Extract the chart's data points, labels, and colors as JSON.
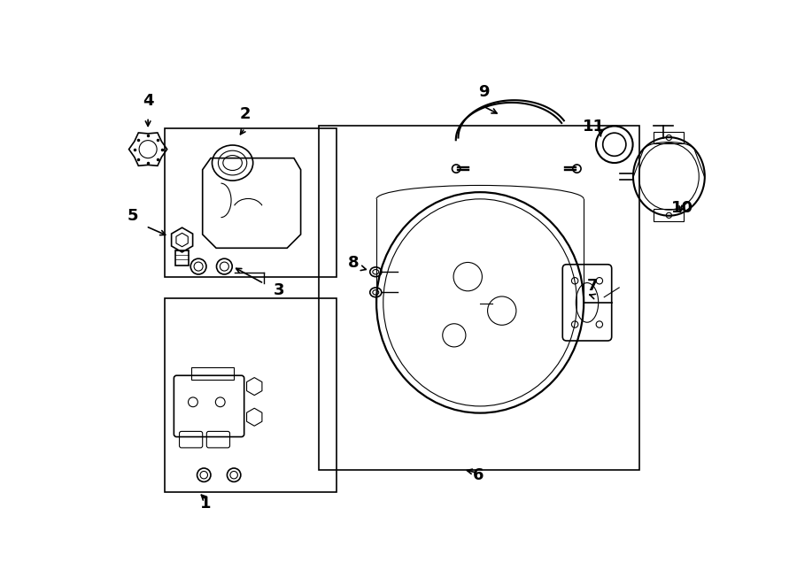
{
  "bg_color": "#ffffff",
  "line_color": "#000000",
  "figure_width": 9.0,
  "figure_height": 6.61,
  "dpi": 100
}
